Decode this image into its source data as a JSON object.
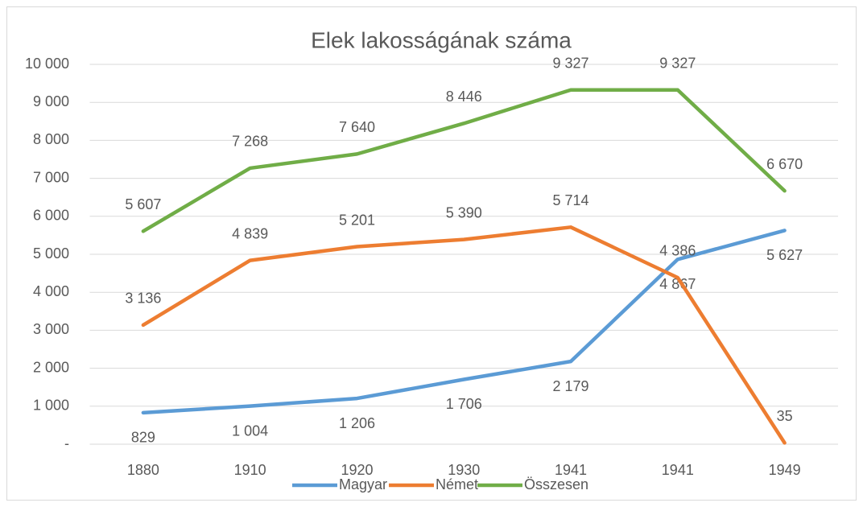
{
  "chart_data": {
    "type": "line",
    "title": "Elek lakosságának száma",
    "categories": [
      "1880",
      "1910",
      "1920",
      "1930",
      "1941",
      "1941",
      "1949"
    ],
    "series": [
      {
        "name": "Magyar",
        "color": "#5b9bd5",
        "values": [
          829,
          1004,
          1206,
          1706,
          2179,
          4867,
          5627
        ],
        "value_labels": [
          "829",
          "1 004",
          "1 206",
          "1 706",
          "2 179",
          "4 867",
          "5 627"
        ],
        "label_position": "below"
      },
      {
        "name": "Német",
        "color": "#ed7d31",
        "values": [
          3136,
          4839,
          5201,
          5390,
          5714,
          4386,
          35
        ],
        "value_labels": [
          "3 136",
          "4 839",
          "5 201",
          "5 390",
          "5 714",
          "4 386",
          "35"
        ],
        "label_position": "above"
      },
      {
        "name": "Összesen",
        "color": "#70ad47",
        "values": [
          5607,
          7268,
          7640,
          8446,
          9327,
          9327,
          6670
        ],
        "value_labels": [
          "5 607",
          "7 268",
          "7 640",
          "8 446",
          "9 327",
          "9 327",
          "6 670"
        ],
        "label_position": "above"
      }
    ],
    "ylim": [
      0,
      10000
    ],
    "yticks": [
      {
        "value": 0,
        "label": "-"
      },
      {
        "value": 1000,
        "label": "1 000"
      },
      {
        "value": 2000,
        "label": "2 000"
      },
      {
        "value": 3000,
        "label": "3 000"
      },
      {
        "value": 4000,
        "label": "4 000"
      },
      {
        "value": 5000,
        "label": "5 000"
      },
      {
        "value": 6000,
        "label": "6 000"
      },
      {
        "value": 7000,
        "label": "7 000"
      },
      {
        "value": 8000,
        "label": "8 000"
      },
      {
        "value": 9000,
        "label": "9 000"
      },
      {
        "value": 10000,
        "label": "10 000"
      }
    ],
    "grid": true,
    "legend": "bottom"
  }
}
